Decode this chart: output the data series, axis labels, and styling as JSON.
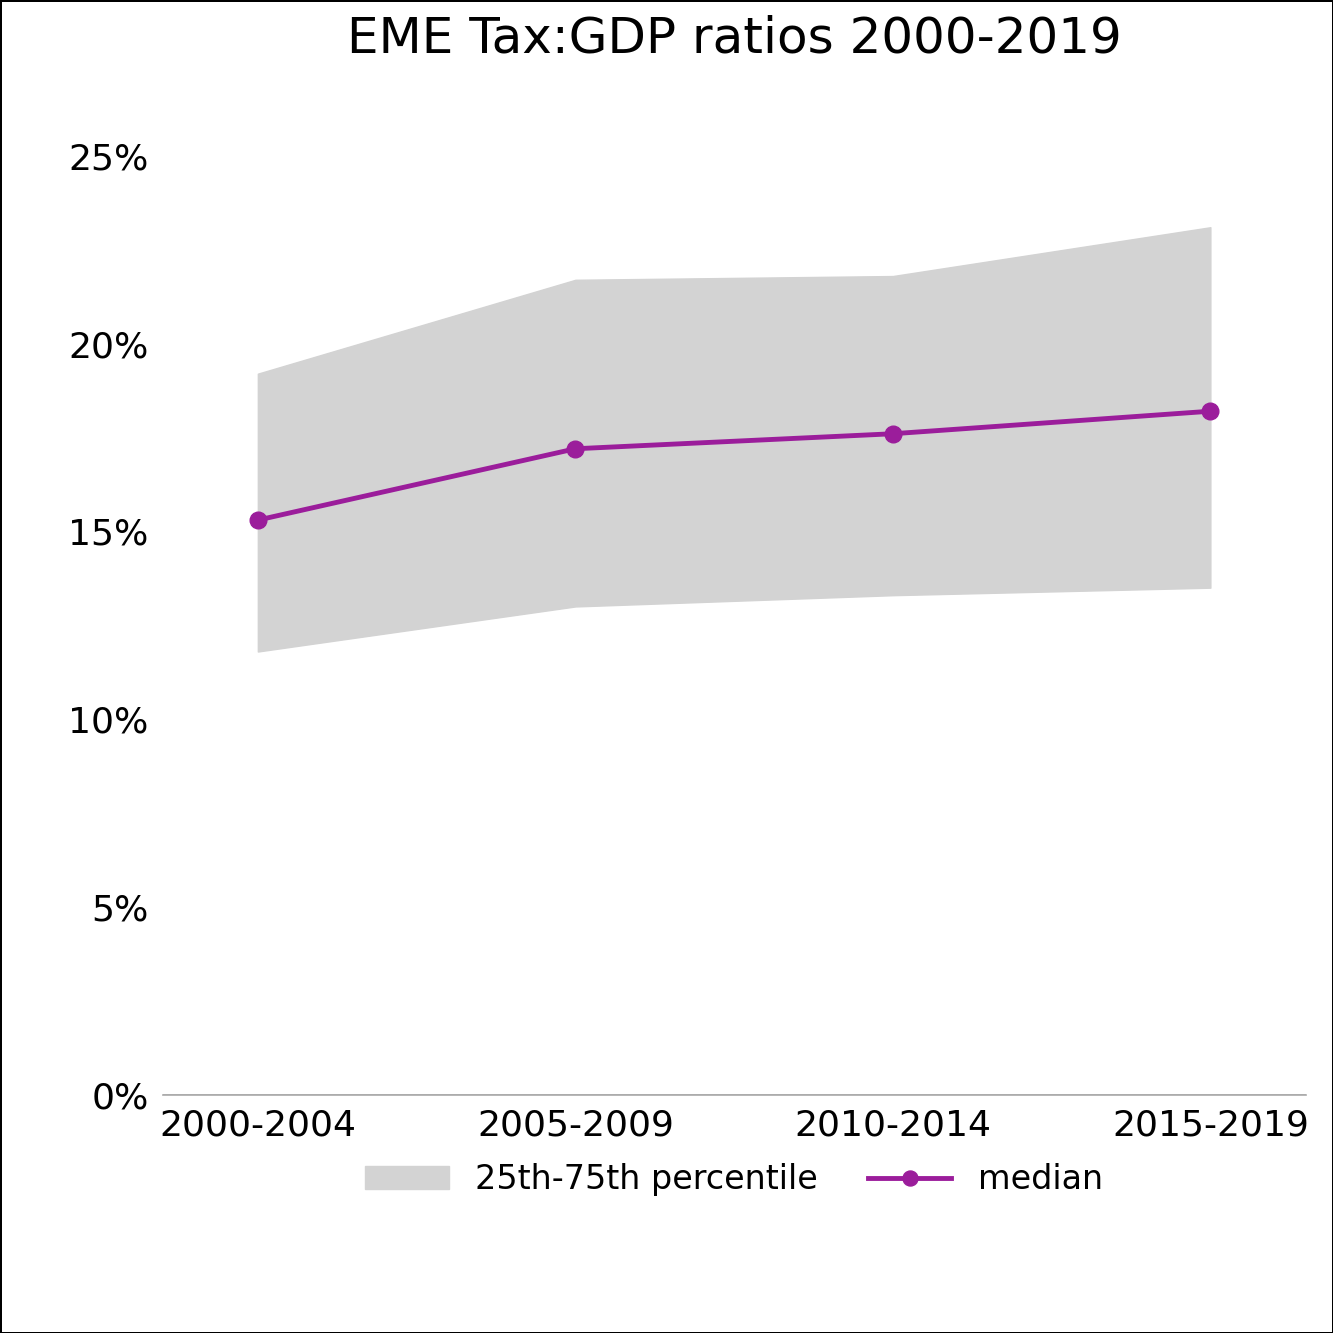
{
  "title": "EME Tax:GDP ratios 2000-2019",
  "x_labels": [
    "2000-2004",
    "2005-2009",
    "2010-2014",
    "2015-2019"
  ],
  "x_positions": [
    0,
    1,
    2,
    3
  ],
  "median": [
    0.153,
    0.172,
    0.176,
    0.182
  ],
  "p25": [
    0.118,
    0.13,
    0.133,
    0.135
  ],
  "p75": [
    0.192,
    0.217,
    0.218,
    0.231
  ],
  "ylim": [
    0.0,
    0.27
  ],
  "yticks": [
    0.0,
    0.05,
    0.1,
    0.15,
    0.2,
    0.25
  ],
  "ytick_labels": [
    "0%",
    "5%",
    "10%",
    "15%",
    "20%",
    "25%"
  ],
  "band_color": "#d3d3d3",
  "line_color": "#9b1d9b",
  "marker_color": "#9b1d9b",
  "background_color": "#ffffff",
  "title_fontsize": 36,
  "tick_fontsize": 26,
  "legend_fontsize": 24,
  "line_width": 3.5,
  "marker_size": 12
}
